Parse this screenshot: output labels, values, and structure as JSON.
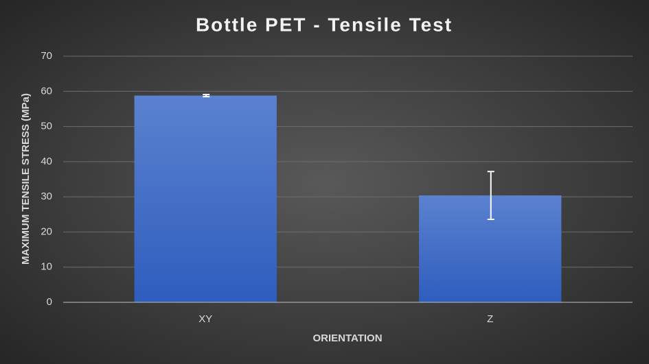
{
  "chart_data": {
    "type": "bar",
    "title": "Bottle PET - Tensile Test",
    "x_label": "ORIENTATION",
    "y_label": "MAXIMUM TENSILE STRESS (MPa)",
    "categories": [
      "XY",
      "Z"
    ],
    "values": [
      58.8,
      30.4
    ],
    "errors": [
      0.3,
      6.8
    ],
    "color": "#4472c4",
    "error_color": "#ffffff",
    "ylim": [
      0,
      70
    ],
    "yticks": [
      0,
      10,
      20,
      30,
      40,
      50,
      60,
      70
    ],
    "grid": true
  }
}
